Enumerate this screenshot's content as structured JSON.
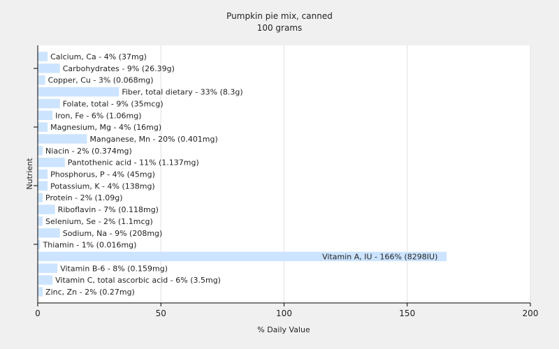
{
  "chart_data": {
    "type": "bar",
    "orientation": "horizontal",
    "title": "Pumpkin pie mix, canned",
    "subtitle": "100 grams",
    "xlabel": "% Daily Value",
    "ylabel": "Nutrient",
    "xlim": [
      0,
      200
    ],
    "xticks": [
      0,
      50,
      100,
      150,
      200
    ],
    "grid": true,
    "bar_color": "#cce4ff",
    "categories": [
      "Calcium, Ca",
      "Carbohydrates",
      "Copper, Cu",
      "Fiber, total dietary",
      "Folate, total",
      "Iron, Fe",
      "Magnesium, Mg",
      "Manganese, Mn",
      "Niacin",
      "Pantothenic acid",
      "Phosphorus, P",
      "Potassium, K",
      "Protein",
      "Riboflavin",
      "Selenium, Se",
      "Sodium, Na",
      "Thiamin",
      "Vitamin A, IU",
      "Vitamin B-6",
      "Vitamin C, total ascorbic acid",
      "Zinc, Zn"
    ],
    "values": [
      4,
      9,
      3,
      33,
      9,
      6,
      4,
      20,
      2,
      11,
      4,
      4,
      2,
      7,
      2,
      9,
      1,
      166,
      8,
      6,
      2
    ],
    "labels": [
      "Calcium, Ca - 4% (37mg)",
      "Carbohydrates - 9% (26.39g)",
      "Copper, Cu - 3% (0.068mg)",
      "Fiber, total dietary - 33% (8.3g)",
      "Folate, total - 9% (35mcg)",
      "Iron, Fe - 6% (1.06mg)",
      "Magnesium, Mg - 4% (16mg)",
      "Manganese, Mn - 20% (0.401mg)",
      "Niacin - 2% (0.374mg)",
      "Pantothenic acid - 11% (1.137mg)",
      "Phosphorus, P - 4% (45mg)",
      "Potassium, K - 4% (138mg)",
      "Protein - 2% (1.09g)",
      "Riboflavin - 7% (0.118mg)",
      "Selenium, Se - 2% (1.1mcg)",
      "Sodium, Na - 9% (208mg)",
      "Thiamin - 1% (0.016mg)",
      "Vitamin A, IU - 166% (8298IU)",
      "Vitamin B-6 - 8% (0.159mg)",
      "Vitamin C, total ascorbic acid - 6% (3.5mg)",
      "Zinc, Zn - 2% (0.27mg)"
    ]
  }
}
